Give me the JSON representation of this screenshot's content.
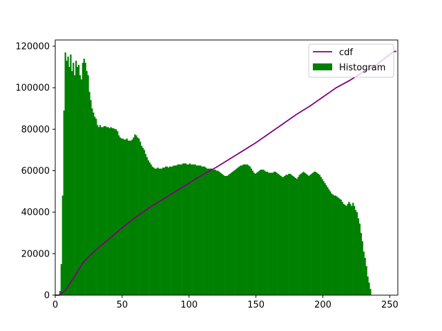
{
  "chart_data": {
    "type": "bar",
    "xlim": [
      0,
      256
    ],
    "ylim": [
      0,
      123000
    ],
    "xticks": [
      0,
      50,
      100,
      150,
      200,
      250
    ],
    "yticks": [
      0,
      20000,
      40000,
      60000,
      80000,
      100000,
      120000
    ],
    "legend_position": "top-right",
    "grid": false,
    "series": [
      {
        "name": "Histogram",
        "type": "bar",
        "color": "#008000",
        "bin_width": 1,
        "x_start": 0,
        "values": [
          0,
          0,
          0,
          2000,
          15000,
          48000,
          89000,
          117000,
          113000,
          115000,
          110000,
          116000,
          108000,
          112000,
          106000,
          113000,
          110000,
          111000,
          106000,
          104000,
          112000,
          114000,
          112000,
          108000,
          106000,
          98000,
          94000,
          90000,
          88000,
          86000,
          85000,
          82000,
          81000,
          82000,
          81000,
          81000,
          81500,
          81500,
          81000,
          81000,
          80500,
          81000,
          80500,
          80500,
          80000,
          80000,
          79000,
          77000,
          76000,
          75500,
          75500,
          75000,
          75000,
          75500,
          74500,
          74500,
          74500,
          75000,
          76000,
          77500,
          77000,
          76000,
          75500,
          74000,
          72000,
          71000,
          70000,
          68000,
          66500,
          65000,
          64000,
          63000,
          62000,
          61500,
          61000,
          61000,
          61500,
          61000,
          61000,
          61000,
          61500,
          61500,
          62000,
          62000,
          61500,
          62000,
          62000,
          62000,
          62500,
          62500,
          62500,
          63000,
          63000,
          63000,
          63000,
          63500,
          63500,
          63500,
          63000,
          63000,
          63500,
          63000,
          63000,
          63000,
          63000,
          62500,
          62500,
          62500,
          62500,
          62000,
          62000,
          62000,
          61500,
          61000,
          61000,
          61000,
          61000,
          60500,
          60500,
          60500,
          60000,
          60000,
          59500,
          59000,
          58500,
          58000,
          57500,
          57500,
          57500,
          58000,
          58500,
          59000,
          59500,
          60000,
          60500,
          61000,
          61500,
          62000,
          62500,
          62500,
          63000,
          63000,
          63000,
          63000,
          62500,
          62000,
          61000,
          60000,
          59000,
          58500,
          59000,
          59500,
          60000,
          60500,
          60500,
          60500,
          60000,
          59500,
          59500,
          59000,
          59000,
          59000,
          59000,
          59500,
          59500,
          59000,
          58500,
          58000,
          57500,
          57000,
          57000,
          57500,
          58000,
          58000,
          58500,
          58500,
          58000,
          57500,
          57000,
          56500,
          56000,
          57000,
          58000,
          58500,
          59000,
          59500,
          59000,
          58500,
          58000,
          57500,
          58000,
          58500,
          59000,
          59500,
          59500,
          59000,
          58500,
          58000,
          57000,
          56000,
          55000,
          54000,
          53000,
          52000,
          51000,
          50000,
          49000,
          48500,
          48000,
          48000,
          47500,
          47000,
          46500,
          46000,
          45000,
          44000,
          43500,
          43000,
          44000,
          45000,
          44000,
          43000,
          44500,
          43000,
          41000,
          40000,
          37000,
          34500,
          30000,
          26000,
          21000,
          18000,
          14000,
          9000,
          6000,
          3000
        ]
      },
      {
        "name": "cdf",
        "type": "line",
        "color": "#800080",
        "x": [
          0,
          3,
          5,
          8,
          10,
          15,
          20,
          25,
          30,
          40,
          50,
          60,
          70,
          80,
          90,
          100,
          110,
          120,
          130,
          140,
          150,
          160,
          170,
          180,
          190,
          200,
          210,
          220,
          230,
          240,
          245,
          250,
          253,
          255
        ],
        "y": [
          0,
          0,
          1000,
          2500,
          4800,
          9500,
          15000,
          18500,
          21500,
          27000,
          32500,
          37500,
          42000,
          46000,
          50000,
          54000,
          58000,
          61500,
          65500,
          69500,
          73500,
          78000,
          82500,
          87000,
          91000,
          95500,
          100000,
          103500,
          107500,
          111000,
          113500,
          116000,
          117500,
          117500
        ]
      }
    ]
  }
}
